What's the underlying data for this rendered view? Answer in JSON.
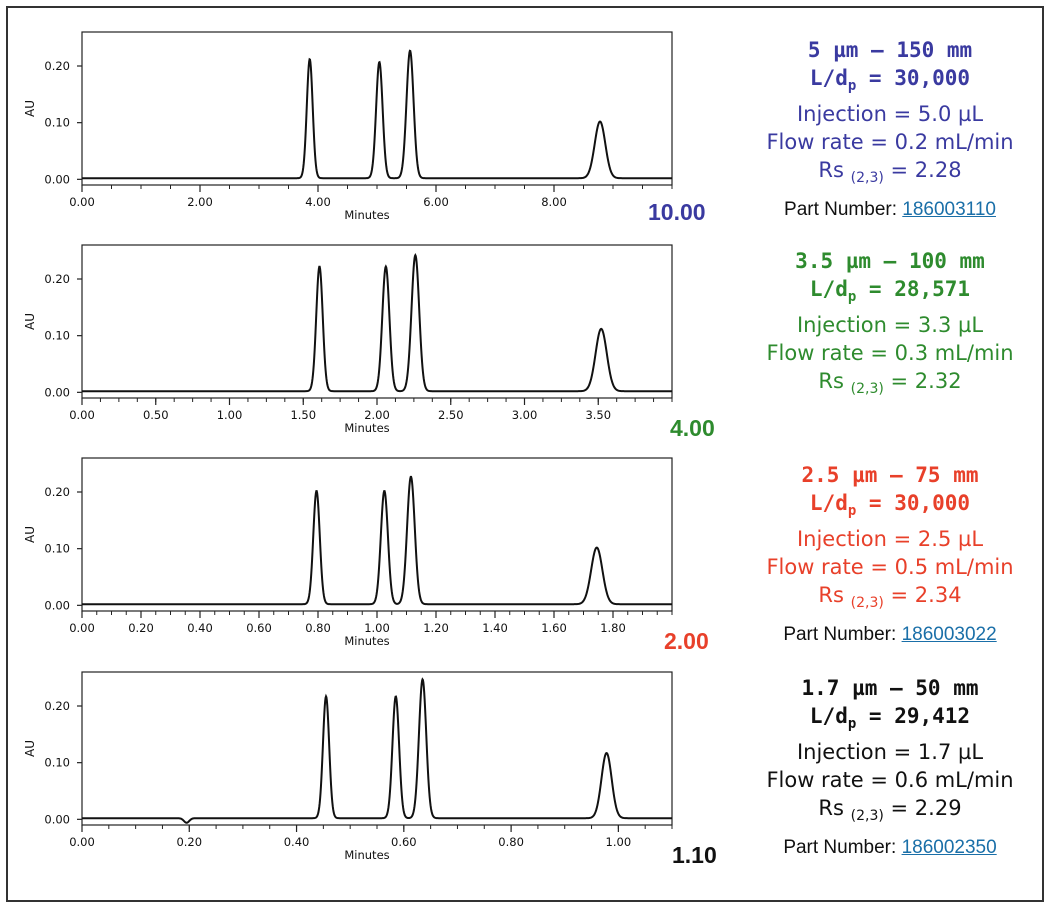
{
  "chart_data": [
    {
      "type": "line",
      "xlabel": "Minutes",
      "ylabel": "AU",
      "xlim": [
        0,
        10.0
      ],
      "ylim": [
        -0.01,
        0.26
      ],
      "x_ticks": [
        "0.00",
        "2.00",
        "4.00",
        "6.00",
        "8.00"
      ],
      "x_tick_values": [
        0,
        2,
        4,
        6,
        8
      ],
      "y_ticks": [
        "0.00",
        "0.10",
        "0.20"
      ],
      "y_tick_values": [
        0,
        0.1,
        0.2
      ],
      "end_label": "10.00",
      "peaks": [
        {
          "t": 3.86,
          "h": 0.21,
          "w": 0.05
        },
        {
          "t": 5.04,
          "h": 0.205,
          "w": 0.055
        },
        {
          "t": 5.56,
          "h": 0.225,
          "w": 0.06
        },
        {
          "t": 8.78,
          "h": 0.1,
          "w": 0.09
        }
      ],
      "dip": null,
      "info": {
        "color": "#3a3aa0",
        "line1": "5 µm – 150 mm",
        "ld_prefix": "L/d",
        "ld_sub": "p",
        "ld_value": " = 30,000",
        "injection": "Injection = 5.0 µL",
        "flow": "Flow rate = 0.2 mL/min",
        "rs_prefix": "Rs",
        "rs_sub": "(2,3)",
        "rs_value": " = 2.28",
        "part_label": "Part Number: ",
        "part_number": "186003110"
      }
    },
    {
      "type": "line",
      "xlabel": "Minutes",
      "ylabel": "AU",
      "xlim": [
        0,
        4.0
      ],
      "ylim": [
        -0.01,
        0.26
      ],
      "x_ticks": [
        "0.00",
        "0.50",
        "1.00",
        "1.50",
        "2.00",
        "2.50",
        "3.00",
        "3.50"
      ],
      "x_tick_values": [
        0,
        0.5,
        1.0,
        1.5,
        2.0,
        2.5,
        3.0,
        3.5
      ],
      "y_ticks": [
        "0.00",
        "0.10",
        "0.20"
      ],
      "y_tick_values": [
        0,
        0.1,
        0.2
      ],
      "end_label": "4.00",
      "peaks": [
        {
          "t": 1.61,
          "h": 0.22,
          "w": 0.022
        },
        {
          "t": 2.06,
          "h": 0.22,
          "w": 0.024
        },
        {
          "t": 2.26,
          "h": 0.24,
          "w": 0.026
        },
        {
          "t": 3.52,
          "h": 0.11,
          "w": 0.038
        }
      ],
      "dip": null,
      "info": {
        "color": "#2e8b2e",
        "line1": "3.5 µm – 100 mm",
        "ld_prefix": "L/d",
        "ld_sub": "p",
        "ld_value": " = 28,571",
        "injection": "Injection = 3.3 µL",
        "flow": "Flow rate = 0.3 mL/min",
        "rs_prefix": "Rs",
        "rs_sub": "(2,3)",
        "rs_value": " = 2.32",
        "part_label": "",
        "part_number": ""
      }
    },
    {
      "type": "line",
      "xlabel": "Minutes",
      "ylabel": "AU",
      "xlim": [
        0,
        2.0
      ],
      "ylim": [
        -0.01,
        0.26
      ],
      "x_ticks": [
        "0.00",
        "0.20",
        "0.40",
        "0.60",
        "0.80",
        "1.00",
        "1.20",
        "1.40",
        "1.60",
        "1.80"
      ],
      "x_tick_values": [
        0,
        0.2,
        0.4,
        0.6,
        0.8,
        1.0,
        1.2,
        1.4,
        1.6,
        1.8
      ],
      "y_ticks": [
        "0.00",
        "0.10",
        "0.20"
      ],
      "y_tick_values": [
        0,
        0.1,
        0.2
      ],
      "end_label": "2.00",
      "peaks": [
        {
          "t": 0.795,
          "h": 0.2,
          "w": 0.011
        },
        {
          "t": 1.025,
          "h": 0.2,
          "w": 0.012
        },
        {
          "t": 1.115,
          "h": 0.225,
          "w": 0.013
        },
        {
          "t": 1.745,
          "h": 0.1,
          "w": 0.019
        }
      ],
      "dip": null,
      "info": {
        "color": "#e8402a",
        "line1": "2.5 µm – 75 mm",
        "ld_prefix": "L/d",
        "ld_sub": "p",
        "ld_value": " = 30,000",
        "injection": "Injection = 2.5 µL",
        "flow": "Flow rate = 0.5 mL/min",
        "rs_prefix": "Rs",
        "rs_sub": "(2,3)",
        "rs_value": " = 2.34",
        "part_label": "Part Number: ",
        "part_number": "186003022"
      }
    },
    {
      "type": "line",
      "xlabel": "Minutes",
      "ylabel": "AU",
      "xlim": [
        0,
        1.1
      ],
      "ylim": [
        -0.01,
        0.26
      ],
      "x_ticks": [
        "0.00",
        "0.20",
        "0.40",
        "0.60",
        "0.80",
        "1.00"
      ],
      "x_tick_values": [
        0,
        0.2,
        0.4,
        0.6,
        0.8,
        1.0
      ],
      "y_ticks": [
        "0.00",
        "0.10",
        "0.20"
      ],
      "y_tick_values": [
        0,
        0.1,
        0.2
      ],
      "end_label": "1.10",
      "peaks": [
        {
          "t": 0.455,
          "h": 0.215,
          "w": 0.0058
        },
        {
          "t": 0.585,
          "h": 0.215,
          "w": 0.0062
        },
        {
          "t": 0.635,
          "h": 0.245,
          "w": 0.0068
        },
        {
          "t": 0.978,
          "h": 0.115,
          "w": 0.0095
        }
      ],
      "dip": {
        "t": 0.195,
        "h": -0.008,
        "w": 0.005
      },
      "info": {
        "color": "#111111",
        "line1": "1.7 µm – 50 mm",
        "ld_prefix": "L/d",
        "ld_sub": "p",
        "ld_value": " = 29,412",
        "injection": "Injection = 1.7 µL",
        "flow": "Flow rate = 0.6 mL/min",
        "rs_prefix": "Rs",
        "rs_sub": "(2,3)",
        "rs_value": " = 2.29",
        "part_label": "Part Number: ",
        "part_number": "186002350"
      }
    }
  ]
}
